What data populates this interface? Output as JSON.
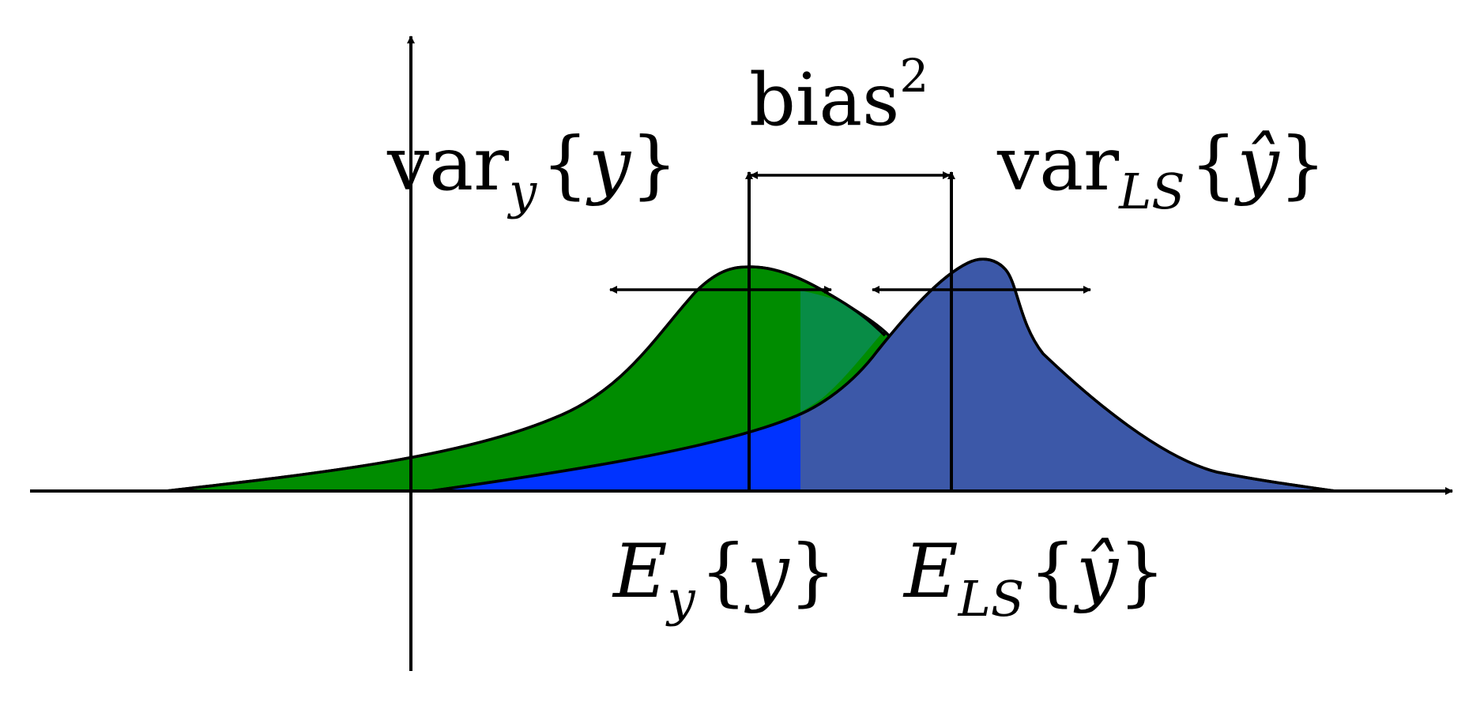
{
  "labels": {
    "bias": {
      "base": "bias",
      "sup": "2"
    },
    "var_y": {
      "op": "var",
      "sub": "y",
      "open": "{",
      "arg": "y",
      "close": "}"
    },
    "var_ls": {
      "op": "var",
      "sub": "LS",
      "open": "{",
      "arg": "ŷ",
      "close": "}"
    },
    "mean_y": {
      "op": "E",
      "sub": "y",
      "open": "{",
      "arg": "y",
      "close": "}"
    },
    "mean_ls": {
      "op": "E",
      "sub": "LS",
      "open": "{",
      "arg": "ŷ",
      "close": "}"
    }
  },
  "colors": {
    "green_distribution": "#008c00",
    "blue_distribution": "#3c58a8",
    "bright_blue_overlap": "#0033ff",
    "teal_overlap": "#088c46",
    "axis": "#000000"
  }
}
